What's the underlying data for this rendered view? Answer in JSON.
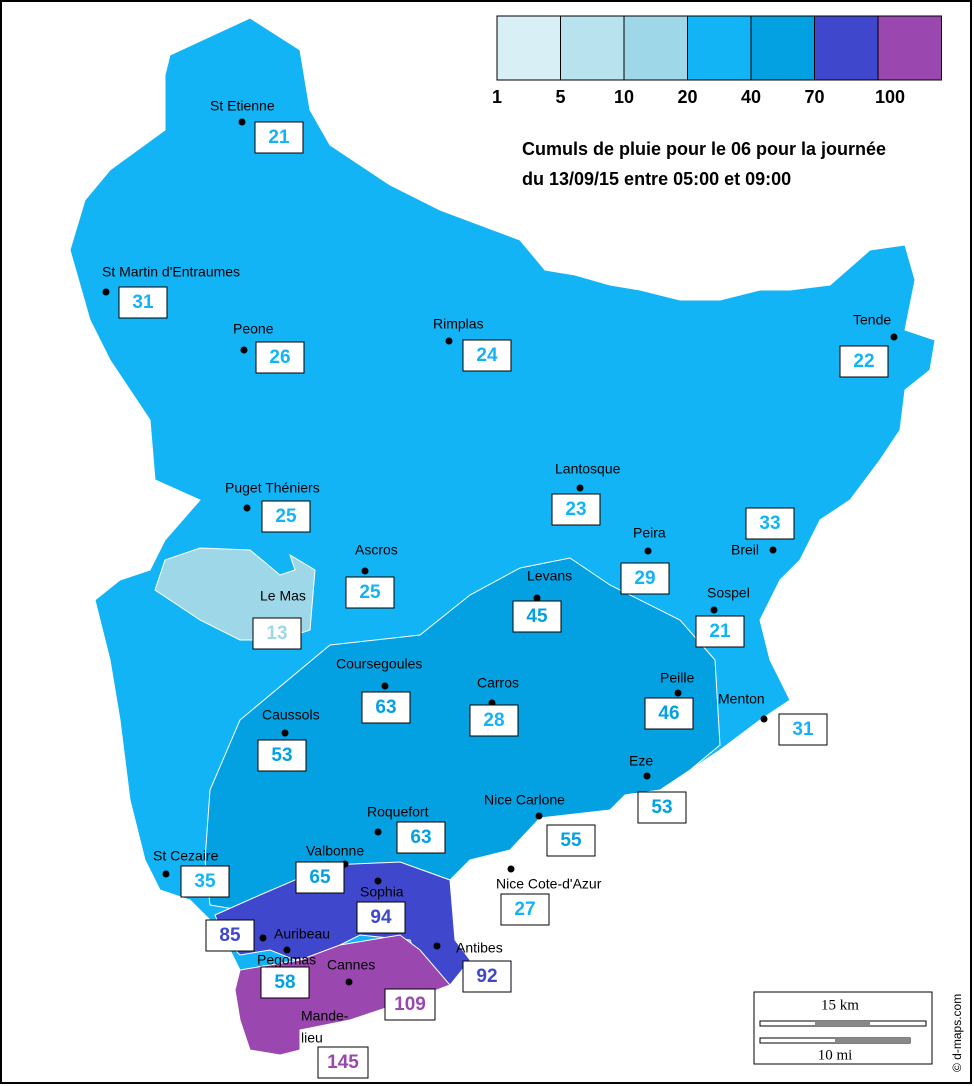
{
  "legend": {
    "labels": [
      1,
      5,
      10,
      20,
      40,
      70,
      100
    ],
    "colors": [
      "#d8eff6",
      "#b7e2ee",
      "#9ed8e8",
      "#12b4f5",
      "#03a0e2",
      "#3f48cc",
      "#9a48b0"
    ]
  },
  "title": [
    "Cumuls de pluie pour le 06 pour la journée",
    "du 13/09/15 entre 05:00 et 09:00"
  ],
  "stations": [
    {
      "name": "St Etienne",
      "value": 21
    },
    {
      "name": "St Martin d'Entraumes",
      "value": 31
    },
    {
      "name": "Peone",
      "value": 26
    },
    {
      "name": "Rimplas",
      "value": 24
    },
    {
      "name": "Tende",
      "value": 22
    },
    {
      "name": "Lantosque",
      "value": 23
    },
    {
      "name": "Puget Théniers",
      "value": 25
    },
    {
      "name": "Ascros",
      "value": 25
    },
    {
      "name": "Peira",
      "value": 29
    },
    {
      "name": "Breil",
      "value": 33
    },
    {
      "name": "Le Mas",
      "value": 13
    },
    {
      "name": "Levans",
      "value": 45
    },
    {
      "name": "Sospel",
      "value": 21
    },
    {
      "name": "Coursegoules",
      "value": 63
    },
    {
      "name": "Carros",
      "value": 28
    },
    {
      "name": "Peille",
      "value": 46
    },
    {
      "name": "Menton",
      "value": 31
    },
    {
      "name": "Caussols",
      "value": 53
    },
    {
      "name": "Eze",
      "value": 53
    },
    {
      "name": "Roquefort",
      "value": 63
    },
    {
      "name": "Nice Carlone",
      "value": 55
    },
    {
      "name": "Valbonne",
      "value": 65
    },
    {
      "name": "St Cezaire",
      "value": 35
    },
    {
      "name": "Nice Cote-d'Azur",
      "value": 27
    },
    {
      "name": "Sophia",
      "value": 94
    },
    {
      "name": "Auribeau",
      "value": 85
    },
    {
      "name": "Antibes",
      "value": 92
    },
    {
      "name": "Pegomas",
      "value": 58
    },
    {
      "name": "Cannes",
      "value": 109
    },
    {
      "name_lines": [
        "Mande-",
        "lieu"
      ],
      "value": 145
    }
  ],
  "scale": {
    "km": "15 km",
    "mi": "10 mi"
  },
  "credit": "© d-maps.com"
}
